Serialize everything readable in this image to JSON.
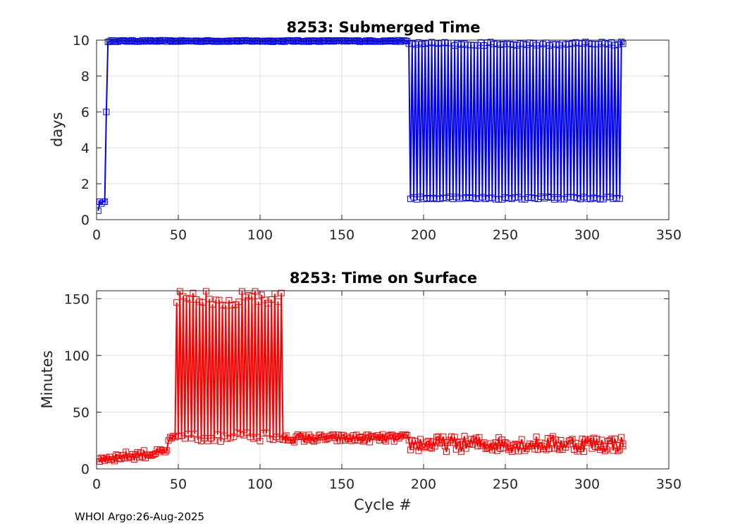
{
  "footer": {
    "note": "WHOI Argo:26-Aug-2025"
  },
  "colors": {
    "series_top": "#0000ff",
    "series_bottom": "#ff0000",
    "grid": "#dedede",
    "axis": "#262626"
  },
  "chart_data": [
    {
      "type": "line",
      "title": "8253: Submerged Time",
      "xlabel": "",
      "ylabel": "days",
      "xlim": [
        0,
        350
      ],
      "ylim": [
        0,
        10
      ],
      "xticks": [
        0,
        50,
        100,
        150,
        200,
        250,
        300,
        350
      ],
      "yticks": [
        0,
        2,
        4,
        6,
        8,
        10
      ],
      "grid": true,
      "marker": "square",
      "series": [
        {
          "name": "Submerged Time",
          "segments": [
            {
              "x": [
                1,
                2,
                3,
                4,
                5,
                6,
                7
              ],
              "y": [
                0.5,
                1.0,
                0.9,
                1.0,
                1.0,
                6.0,
                9.9
              ]
            },
            {
              "x_start": 8,
              "x_end": 190,
              "value": 9.95
            },
            {
              "x_start": 191,
              "x_end": 321,
              "alternating": [
                9.8,
                1.2
              ]
            },
            {
              "x": [
                322
              ],
              "y": [
                9.8
              ]
            }
          ]
        }
      ]
    },
    {
      "type": "line",
      "title": "8253: Time on Surface",
      "xlabel": "Cycle #",
      "ylabel": "Minutes",
      "xlim": [
        0,
        350
      ],
      "ylim": [
        0,
        157
      ],
      "xticks": [
        0,
        50,
        100,
        150,
        200,
        250,
        300,
        350
      ],
      "yticks": [
        0,
        50,
        100,
        150
      ],
      "grid": true,
      "marker": "square",
      "series": [
        {
          "name": "Time on Surface",
          "segments": [
            {
              "x_start": 1,
              "x_end": 43,
              "range": [
                6,
                17
              ],
              "trend": "rising 9 to 15"
            },
            {
              "x": [
                44,
                45,
                46,
                47,
                48
              ],
              "y": [
                25,
                28,
                27,
                29,
                28
              ]
            },
            {
              "x_start": 49,
              "x_end": 114,
              "alternating": [
                150,
                28
              ]
            },
            {
              "x_start": 115,
              "x_end": 190,
              "range": [
                23,
                33
              ],
              "center": 27
            },
            {
              "x_start": 191,
              "x_end": 322,
              "range": [
                14,
                34
              ],
              "center": 22
            },
            {
              "x": [
                322
              ],
              "y": [
                20
              ]
            }
          ]
        }
      ]
    }
  ]
}
